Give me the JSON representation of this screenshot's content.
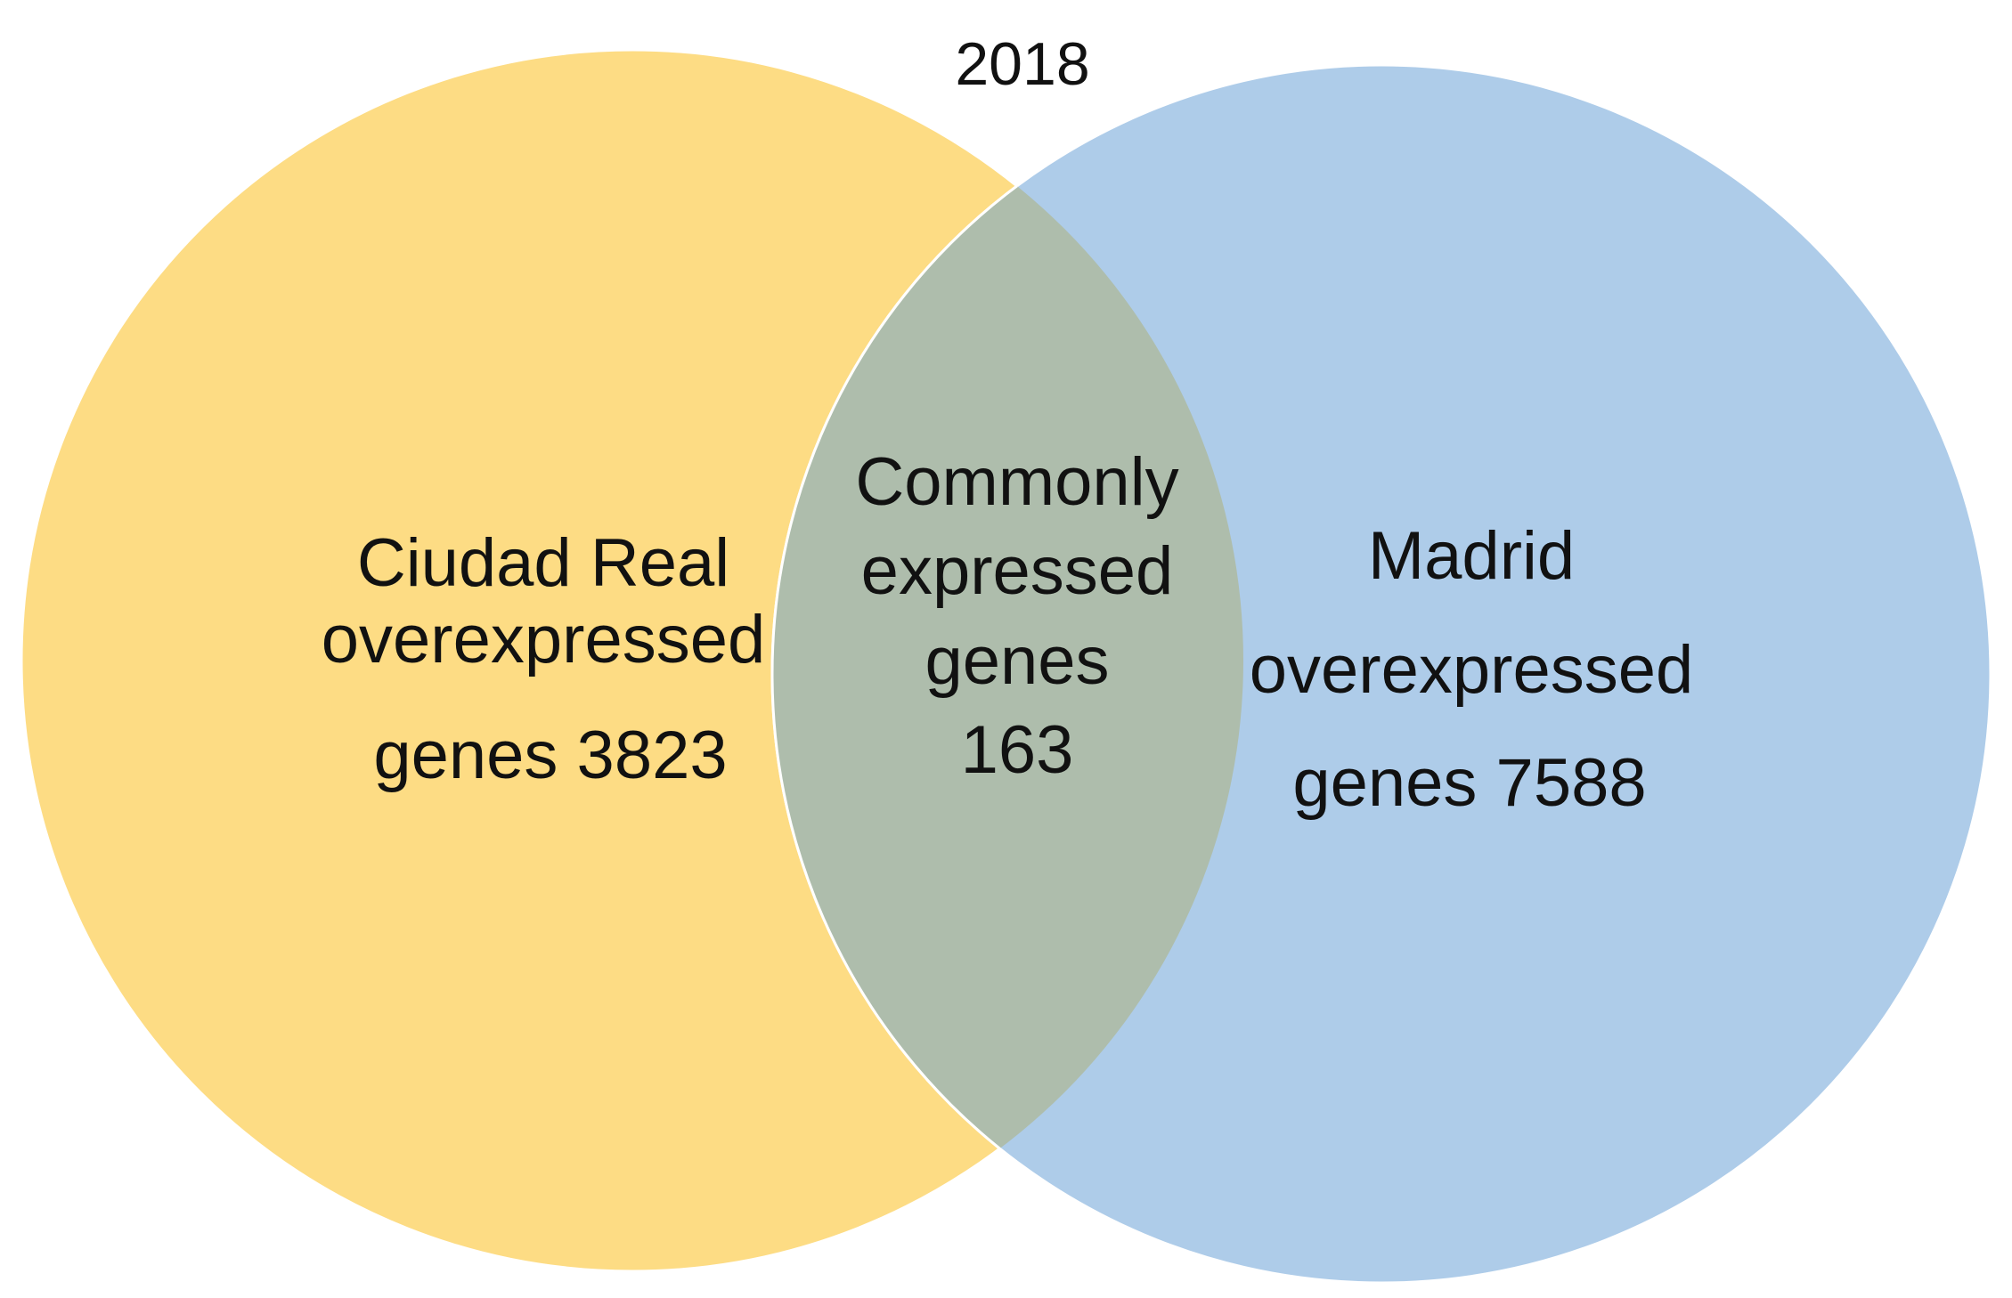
{
  "title": "2018",
  "sets": [
    {
      "id": "ciudad-real",
      "lines": [
        "Ciudad Real",
        "overexpressed",
        "genes 3823"
      ],
      "count": 3823,
      "color": "#fddc84"
    },
    {
      "id": "madrid",
      "lines": [
        "Madrid",
        "overexpressed",
        "genes 7588"
      ],
      "count": 7588,
      "color": "#aecce9"
    }
  ],
  "intersection": {
    "lines": [
      "Commonly",
      "expressed",
      "genes",
      "163"
    ],
    "count": 163,
    "color": "#aebdac"
  },
  "outline_color": "#ffffff"
}
